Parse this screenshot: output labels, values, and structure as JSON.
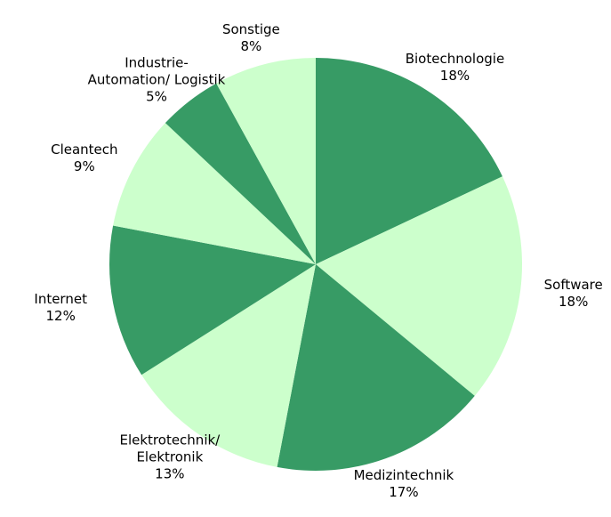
{
  "chart_data": {
    "type": "pie",
    "categories": [
      "Biotechnologie",
      "Software",
      "Medizintechnik",
      "Elektrotechnik/\nElektronik",
      "Internet",
      "Cleantech",
      "Industrie-\nAutomation/ Logistik",
      "Sonstige"
    ],
    "values": [
      18,
      18,
      17,
      13,
      12,
      9,
      5,
      8
    ],
    "value_labels": [
      "18%",
      "18%",
      "17%",
      "13%",
      "12%",
      "9%",
      "5%",
      "8%"
    ],
    "colors": [
      "#379b65",
      "#ccffcc",
      "#379b65",
      "#ccffcc",
      "#379b65",
      "#ccffcc",
      "#379b65",
      "#ccffcc"
    ]
  }
}
